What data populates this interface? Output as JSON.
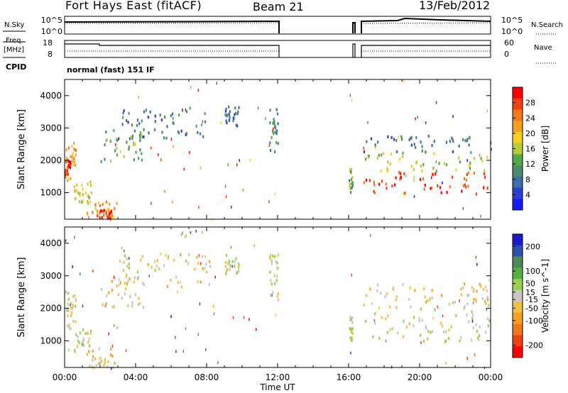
{
  "header": {
    "title": "Fort Hays East (fitACF)",
    "beam": "Beam 21",
    "date": "13/Feb/2012"
  },
  "noise_panel": {
    "left_label": "N.Sky",
    "right_label": "N.Search",
    "left_ticks": [
      "10^5",
      "10^0"
    ],
    "right_ticks": [
      "10^5",
      "10^0"
    ]
  },
  "freq_panel": {
    "left_label_1": "Freq.",
    "left_label_2": "[MHz]",
    "right_label": "Nave",
    "left_ticks": [
      "18",
      "8"
    ],
    "right_ticks": [
      "60",
      "0"
    ]
  },
  "cpid": {
    "label": "CPID",
    "text": "normal (fast) 151 IF"
  },
  "x_axis": {
    "label": "Time UT",
    "ticks": [
      "00:00",
      "04:00",
      "08:00",
      "12:00",
      "16:00",
      "20:00",
      "00:00"
    ]
  },
  "colors": {
    "power": [
      "#1a1aff",
      "#2a3fd0",
      "#3c6ea8",
      "#4c8a6e",
      "#52a84a",
      "#b8cc38",
      "#f5d020",
      "#f5a020",
      "#f57818",
      "#f54010",
      "#ff0000"
    ],
    "velocity": [
      "#1a1acc",
      "#3050b0",
      "#4f8a5a",
      "#55b040",
      "#9ad050",
      "#c8c8c0",
      "#f0c040",
      "#f5a020",
      "#f07818",
      "#f04010",
      "#ff0000"
    ]
  },
  "chart_data": [
    {
      "type": "heatmap",
      "panel": "power",
      "ylabel": "Slant Range [km]",
      "yticks": [
        1000,
        2000,
        3000,
        4000
      ],
      "ylim": [
        180,
        4500
      ],
      "xlim": [
        0,
        24
      ],
      "colorbar": {
        "label": "Power [dB]",
        "ticks": [
          4,
          8,
          12,
          16,
          20,
          24,
          28
        ],
        "range": [
          0,
          32
        ]
      },
      "echo_regions": [
        {
          "t0": 0.0,
          "t1": 0.6,
          "r0": 1400,
          "r1": 2600,
          "value": 22
        },
        {
          "t0": 0.0,
          "t1": 0.3,
          "r0": 1600,
          "r1": 2100,
          "value": 29
        },
        {
          "t0": 0.5,
          "t1": 1.5,
          "r0": 700,
          "r1": 1400,
          "value": 18
        },
        {
          "t0": 1.2,
          "t1": 2.8,
          "r0": 200,
          "r1": 800,
          "value": 22
        },
        {
          "t0": 1.8,
          "t1": 2.6,
          "r0": 250,
          "r1": 500,
          "value": 28
        },
        {
          "t0": 2.0,
          "t1": 4.5,
          "r0": 2000,
          "r1": 3000,
          "value": 12
        },
        {
          "t0": 3.0,
          "t1": 8.2,
          "r0": 2700,
          "r1": 3700,
          "value": 9
        },
        {
          "t0": 9.0,
          "t1": 9.8,
          "r0": 3100,
          "r1": 3700,
          "value": 8
        },
        {
          "t0": 11.5,
          "t1": 12.0,
          "r0": 2300,
          "r1": 3700,
          "value": 10
        },
        {
          "t0": 16.0,
          "t1": 16.2,
          "r0": 1000,
          "r1": 1800,
          "value": 14
        },
        {
          "t0": 16.8,
          "t1": 24.0,
          "r0": 1000,
          "r1": 1700,
          "value": 28
        },
        {
          "t0": 16.8,
          "t1": 24.0,
          "r0": 1700,
          "r1": 2300,
          "value": 16
        },
        {
          "t0": 16.8,
          "t1": 24.0,
          "r0": 2300,
          "r1": 2800,
          "value": 8
        }
      ]
    },
    {
      "type": "heatmap",
      "panel": "velocity",
      "ylabel": "Slant Range [km]",
      "yticks": [
        1000,
        2000,
        3000,
        4000
      ],
      "ylim": [
        180,
        4500
      ],
      "xlim": [
        0,
        24
      ],
      "colorbar": {
        "label": "Velocity [m s^-1]",
        "ticks": [
          200,
          100,
          50,
          15,
          -15,
          -50,
          -100,
          -200
        ],
        "range": [
          -250,
          250
        ]
      },
      "echo_regions": [
        {
          "t0": 0.0,
          "t1": 0.6,
          "r0": 1400,
          "r1": 2600,
          "value": 0
        },
        {
          "t0": 0.5,
          "t1": 1.5,
          "r0": 700,
          "r1": 1400,
          "value": 0
        },
        {
          "t0": 1.2,
          "t1": 2.8,
          "r0": 200,
          "r1": 800,
          "value": -30
        },
        {
          "t0": 2.0,
          "t1": 4.5,
          "r0": 2000,
          "r1": 3000,
          "value": -40
        },
        {
          "t0": 3.0,
          "t1": 8.2,
          "r0": 2700,
          "r1": 3700,
          "value": -20
        },
        {
          "t0": 9.0,
          "t1": 9.8,
          "r0": 3100,
          "r1": 3700,
          "value": 0
        },
        {
          "t0": 11.5,
          "t1": 12.0,
          "r0": 2300,
          "r1": 3700,
          "value": 20
        },
        {
          "t0": 16.0,
          "t1": 16.2,
          "r0": 1000,
          "r1": 1800,
          "value": 0
        },
        {
          "t0": 16.8,
          "t1": 24.0,
          "r0": 1000,
          "r1": 2300,
          "value": 0
        },
        {
          "t0": 16.8,
          "t1": 24.0,
          "r0": 2300,
          "r1": 2800,
          "value": -40
        }
      ]
    }
  ]
}
